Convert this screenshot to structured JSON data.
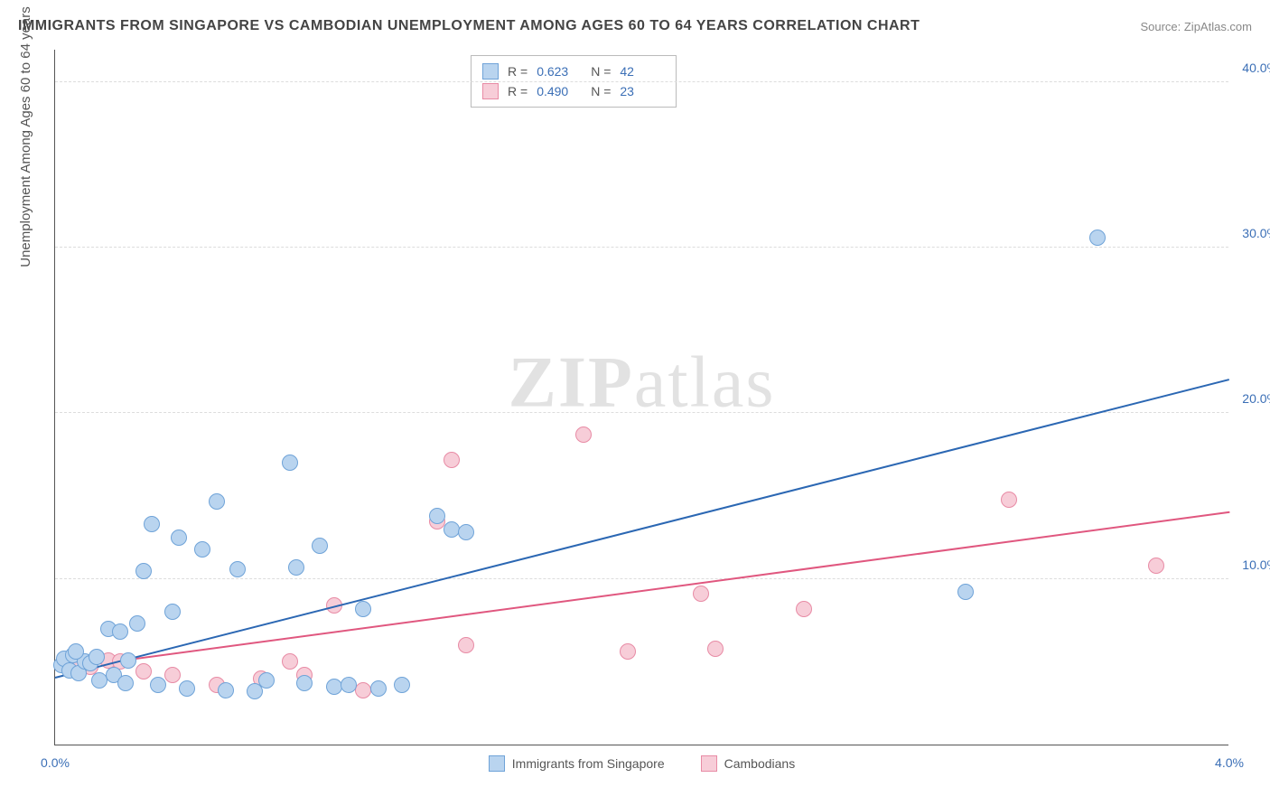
{
  "title": "IMMIGRANTS FROM SINGAPORE VS CAMBODIAN UNEMPLOYMENT AMONG AGES 60 TO 64 YEARS CORRELATION CHART",
  "source_label": "Source: ",
  "source_value": "ZipAtlas.com",
  "y_axis_title": "Unemployment Among Ages 60 to 64 years",
  "watermark_a": "ZIP",
  "watermark_b": "atlas",
  "chart": {
    "type": "scatter",
    "xlim": [
      0.0,
      4.0
    ],
    "ylim": [
      0.0,
      42.0
    ],
    "x_ticks": [
      {
        "v": 0.0,
        "l": "0.0%"
      },
      {
        "v": 4.0,
        "l": "4.0%"
      }
    ],
    "y_ticks": [
      {
        "v": 10.0,
        "l": "10.0%"
      },
      {
        "v": 20.0,
        "l": "20.0%"
      },
      {
        "v": 30.0,
        "l": "30.0%"
      },
      {
        "v": 40.0,
        "l": "40.0%"
      }
    ],
    "grid_color": "#dddddd",
    "axis_color": "#555555",
    "point_radius": 9,
    "point_border_width": 1,
    "series": [
      {
        "name": "Immigrants from Singapore",
        "color_fill": "#b9d4ef",
        "color_border": "#6fa3d8",
        "trend_color": "#2b67b3",
        "trend": {
          "x1": 0.0,
          "y1": 4.0,
          "x2": 4.0,
          "y2": 22.0
        },
        "R": "0.623",
        "N": "42",
        "points": [
          [
            0.02,
            4.8
          ],
          [
            0.03,
            5.2
          ],
          [
            0.05,
            4.5
          ],
          [
            0.06,
            5.4
          ],
          [
            0.08,
            4.3
          ],
          [
            0.1,
            5.0
          ],
          [
            0.12,
            4.9
          ],
          [
            0.14,
            5.3
          ],
          [
            0.15,
            3.9
          ],
          [
            0.18,
            7.0
          ],
          [
            0.2,
            4.2
          ],
          [
            0.22,
            6.8
          ],
          [
            0.25,
            5.1
          ],
          [
            0.28,
            7.3
          ],
          [
            0.3,
            10.5
          ],
          [
            0.33,
            13.3
          ],
          [
            0.35,
            3.6
          ],
          [
            0.4,
            8.0
          ],
          [
            0.42,
            12.5
          ],
          [
            0.45,
            3.4
          ],
          [
            0.5,
            11.8
          ],
          [
            0.55,
            14.7
          ],
          [
            0.58,
            3.3
          ],
          [
            0.62,
            10.6
          ],
          [
            0.68,
            3.2
          ],
          [
            0.72,
            3.9
          ],
          [
            0.8,
            17.0
          ],
          [
            0.82,
            10.7
          ],
          [
            0.85,
            3.7
          ],
          [
            0.9,
            12.0
          ],
          [
            0.95,
            3.5
          ],
          [
            1.0,
            3.6
          ],
          [
            1.05,
            8.2
          ],
          [
            1.1,
            3.4
          ],
          [
            1.18,
            3.6
          ],
          [
            1.3,
            13.8
          ],
          [
            1.35,
            13.0
          ],
          [
            1.4,
            12.8
          ],
          [
            3.1,
            9.2
          ],
          [
            3.55,
            30.6
          ],
          [
            0.07,
            5.6
          ],
          [
            0.24,
            3.7
          ]
        ]
      },
      {
        "name": "Cambodians",
        "color_fill": "#f7cdd8",
        "color_border": "#e88ba5",
        "trend_color": "#e0577f",
        "trend": {
          "x1": 0.0,
          "y1": 4.5,
          "x2": 4.0,
          "y2": 14.0
        },
        "R": "0.490",
        "N": "23",
        "points": [
          [
            0.05,
            5.0
          ],
          [
            0.08,
            4.6
          ],
          [
            0.12,
            4.7
          ],
          [
            0.18,
            5.1
          ],
          [
            0.22,
            5.0
          ],
          [
            0.3,
            4.4
          ],
          [
            0.4,
            4.2
          ],
          [
            0.55,
            3.6
          ],
          [
            0.7,
            4.0
          ],
          [
            0.8,
            5.0
          ],
          [
            0.85,
            4.2
          ],
          [
            0.95,
            8.4
          ],
          [
            1.05,
            3.3
          ],
          [
            1.35,
            17.2
          ],
          [
            1.4,
            6.0
          ],
          [
            1.8,
            18.7
          ],
          [
            1.95,
            5.6
          ],
          [
            2.2,
            9.1
          ],
          [
            2.25,
            5.8
          ],
          [
            2.55,
            8.2
          ],
          [
            3.25,
            14.8
          ],
          [
            3.75,
            10.8
          ],
          [
            1.3,
            13.5
          ]
        ]
      }
    ],
    "legend_labels": {
      "R": "R =",
      "N": "N ="
    }
  }
}
